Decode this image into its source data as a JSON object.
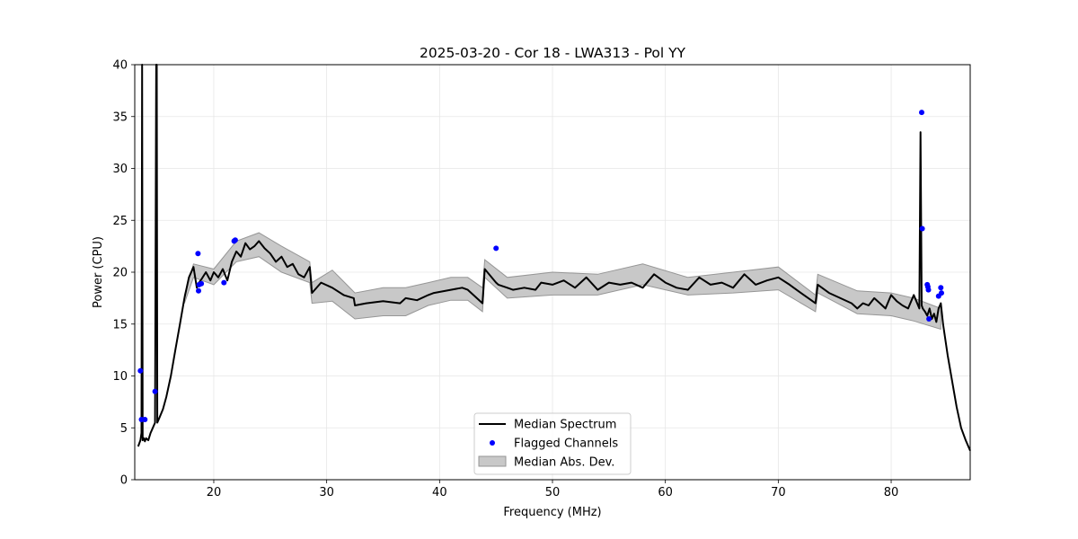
{
  "chart_data": {
    "type": "line",
    "title": "2025-03-20 - Cor 18 - LWA313 - Pol YY",
    "xlabel": "Frequency (MHz)",
    "ylabel": "Power (CPU)",
    "xlim": [
      13,
      87
    ],
    "ylim": [
      0,
      40
    ],
    "xticks": [
      20,
      30,
      40,
      50,
      60,
      70,
      80
    ],
    "yticks": [
      0,
      5,
      10,
      15,
      20,
      25,
      30,
      35,
      40
    ],
    "grid": true,
    "legend_position": "lower-center",
    "legend": [
      "Median Spectrum",
      "Flagged Channels",
      "Median Abs. Dev."
    ],
    "colors": {
      "median": "#000000",
      "flagged": "#0000ff",
      "band_fill": "#c8c8c8",
      "band_edge": "#969696",
      "grid": "#e6e6e6"
    },
    "median_spectrum": {
      "x": [
        13.3,
        13.5,
        13.6,
        13.65,
        13.7,
        13.8,
        13.9,
        14.0,
        14.2,
        14.4,
        14.6,
        14.8,
        14.9,
        14.95,
        15.0,
        15.2,
        15.5,
        15.8,
        16.2,
        16.6,
        17.0,
        17.4,
        17.8,
        18.2,
        18.5,
        18.7,
        18.9,
        19.3,
        19.7,
        20.0,
        20.4,
        20.8,
        21.2,
        21.6,
        22.0,
        22.4,
        22.8,
        23.2,
        23.6,
        24.0,
        24.5,
        25.0,
        25.5,
        26.0,
        26.5,
        27.0,
        27.5,
        28.0,
        28.5,
        28.7,
        29.5,
        30.5,
        31.5,
        32.4,
        32.5,
        33.5,
        35.0,
        36.5,
        37.0,
        38.0,
        39.0,
        39.5,
        41.0,
        42.0,
        42.5,
        43.0,
        43.8,
        44.0,
        45.0,
        45.2,
        46.0,
        46.5,
        47.5,
        48.5,
        49.0,
        50.0,
        51.0,
        52.0,
        53.0,
        54.0,
        55.0,
        56.0,
        57.0,
        58.0,
        59.0,
        60.0,
        61.0,
        62.0,
        63.0,
        64.0,
        65.0,
        66.0,
        67.0,
        68.0,
        69.0,
        70.0,
        71.0,
        72.0,
        73.3,
        73.5,
        74.5,
        75.5,
        76.5,
        77.0,
        77.5,
        78.0,
        78.5,
        79.0,
        79.5,
        80.0,
        80.5,
        81.0,
        81.5,
        82.0,
        82.5,
        82.6,
        82.7,
        82.8,
        83.0,
        83.2,
        83.4,
        83.6,
        83.8,
        84.0,
        84.2,
        84.4,
        84.6,
        85.0,
        85.4,
        85.8,
        86.2,
        86.6,
        87.0
      ],
      "y": [
        3.2,
        3.8,
        4.5,
        40,
        3.8,
        4.0,
        3.7,
        4.0,
        3.8,
        4.5,
        5.0,
        5.5,
        40,
        40,
        5.5,
        6.0,
        6.8,
        8.0,
        10.0,
        12.5,
        15.0,
        17.5,
        19.5,
        20.5,
        18.5,
        19.0,
        19.3,
        20.0,
        19.2,
        20.0,
        19.5,
        20.3,
        19.2,
        21.0,
        22.0,
        21.5,
        22.8,
        22.2,
        22.5,
        23.0,
        22.3,
        21.8,
        21.0,
        21.5,
        20.5,
        20.8,
        19.8,
        19.5,
        20.5,
        18.0,
        19.0,
        18.5,
        17.8,
        17.5,
        16.8,
        17.0,
        17.2,
        17.0,
        17.5,
        17.3,
        17.8,
        18.0,
        18.3,
        18.5,
        18.3,
        17.8,
        17.0,
        20.3,
        19.0,
        18.8,
        18.5,
        18.3,
        18.5,
        18.3,
        19.0,
        18.8,
        19.2,
        18.5,
        19.5,
        18.3,
        19.0,
        18.8,
        19.0,
        18.5,
        19.8,
        19.0,
        18.5,
        18.3,
        19.5,
        18.8,
        19.0,
        18.5,
        19.8,
        18.8,
        19.2,
        19.5,
        18.8,
        18.0,
        17.0,
        18.8,
        18.0,
        17.5,
        17.0,
        16.5,
        17.0,
        16.8,
        17.5,
        17.0,
        16.5,
        17.8,
        17.2,
        16.8,
        16.5,
        17.8,
        16.5,
        33.5,
        16.8,
        16.5,
        16.2,
        15.8,
        16.5,
        15.5,
        16.0,
        15.2,
        16.5,
        17.0,
        15.0,
        12.0,
        9.5,
        7.0,
        5.0,
        3.8,
        2.8
      ]
    },
    "mad_band": {
      "x": [
        17.4,
        18.2,
        20.0,
        22.0,
        24.0,
        26.0,
        28.5,
        28.7,
        30.5,
        32.5,
        35.0,
        37.0,
        39.0,
        41.0,
        42.5,
        43.8,
        44.0,
        46.0,
        50.0,
        54.0,
        58.0,
        62.0,
        66.0,
        70.0,
        73.3,
        73.5,
        77.0,
        80.0,
        82.0,
        84.4
      ],
      "lower": [
        17.0,
        19.5,
        18.8,
        21.0,
        21.5,
        20.0,
        19.0,
        17.0,
        17.2,
        15.5,
        15.8,
        15.8,
        16.8,
        17.3,
        17.3,
        16.2,
        19.5,
        17.5,
        17.8,
        17.8,
        18.8,
        17.8,
        18.0,
        18.3,
        16.2,
        18.0,
        16.0,
        15.8,
        15.3,
        14.5
      ],
      "upper": [
        17.8,
        20.8,
        20.3,
        23.0,
        23.8,
        22.5,
        21.0,
        19.0,
        20.2,
        18.0,
        18.5,
        18.5,
        19.0,
        19.5,
        19.5,
        18.5,
        21.2,
        19.5,
        20.0,
        19.8,
        20.8,
        19.5,
        20.0,
        20.5,
        17.8,
        19.8,
        18.2,
        18.0,
        17.5,
        16.5
      ]
    },
    "flagged_channels": {
      "x": [
        13.5,
        13.6,
        13.9,
        14.8,
        18.6,
        18.65,
        18.7,
        18.9,
        20.9,
        21.8,
        21.9,
        45.0,
        82.7,
        82.75,
        83.2,
        83.25,
        83.3,
        83.35,
        84.2,
        84.4,
        84.45
      ],
      "y": [
        10.5,
        5.8,
        5.8,
        8.5,
        21.8,
        18.2,
        18.8,
        18.9,
        19.0,
        23.0,
        23.1,
        22.3,
        35.4,
        24.2,
        18.8,
        18.6,
        18.3,
        15.5,
        17.7,
        18.5,
        18.0
      ]
    }
  }
}
